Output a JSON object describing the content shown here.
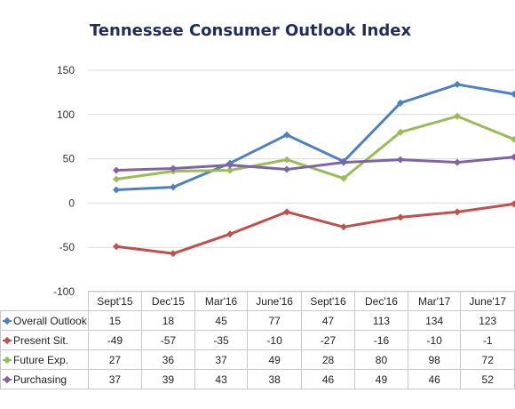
{
  "chart_data": {
    "type": "line",
    "title": "Tennessee Consumer Outlook Index",
    "categories": [
      "Sept'15",
      "Dec'15",
      "Mar'16",
      "June'16",
      "Sept'16",
      "Dec'16",
      "Mar'17",
      "June'17"
    ],
    "series": [
      {
        "name": "Overall Outlook",
        "color": "#4f81bd",
        "values": [
          15,
          18,
          45,
          77,
          47,
          113,
          134,
          123
        ]
      },
      {
        "name": "Present Sit.",
        "color": "#c0504d",
        "values": [
          -49,
          -57,
          -35,
          -10,
          -27,
          -16,
          -10,
          -1
        ]
      },
      {
        "name": "Future Exp.",
        "color": "#9bbb59",
        "values": [
          27,
          36,
          37,
          49,
          28,
          80,
          98,
          72
        ]
      },
      {
        "name": "Purchasing",
        "color": "#8064a2",
        "values": [
          37,
          39,
          43,
          38,
          46,
          49,
          46,
          52
        ]
      }
    ],
    "ylim": [
      -100,
      150
    ],
    "yticks": [
      150,
      100,
      50,
      0,
      -50,
      -100
    ],
    "ytick_labels": [
      "150",
      "100",
      "50",
      "0",
      "-50",
      "-100"
    ],
    "grid": true,
    "legend": "data table below chart"
  }
}
